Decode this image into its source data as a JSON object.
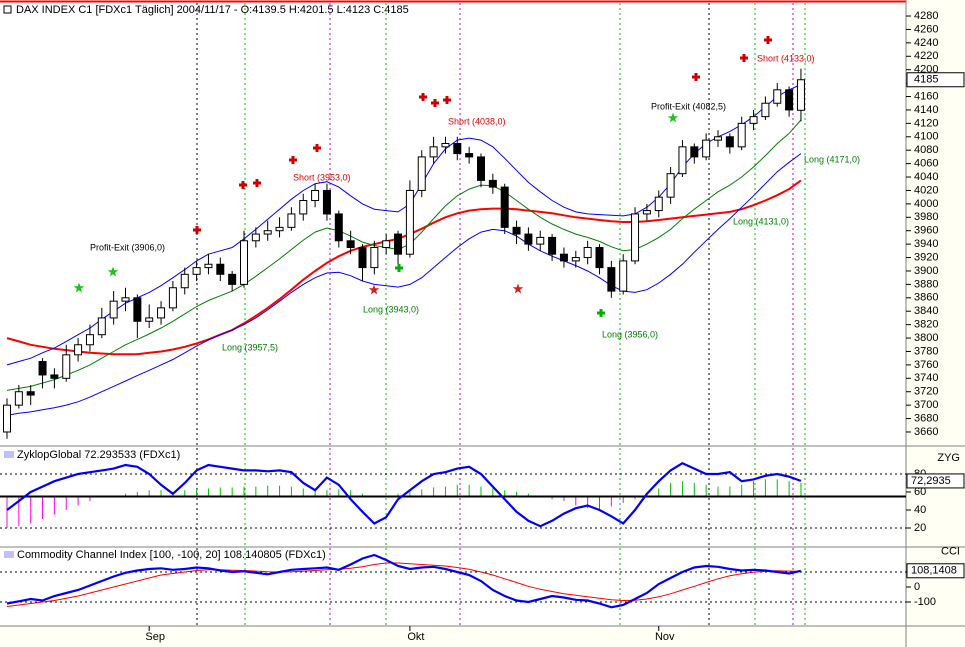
{
  "chart_data": [
    {
      "type": "candlestick",
      "title": "DAX INDEX C1 [FDXc1  Täglich]  2004/11/17  - O:4139.5 H:4201.5 L:4123 C:4185",
      "categories": [
        null,
        null,
        null,
        null,
        null,
        null,
        null,
        null,
        null,
        null,
        null,
        null,
        "Sep",
        null,
        null,
        null,
        null,
        null,
        null,
        null,
        null,
        null,
        null,
        null,
        null,
        null,
        null,
        null,
        null,
        null,
        null,
        null,
        null,
        null,
        "Okt",
        null,
        null,
        null,
        null,
        null,
        null,
        null,
        null,
        null,
        null,
        null,
        null,
        null,
        null,
        null,
        null,
        null,
        null,
        null,
        null,
        "Nov",
        null,
        null,
        null,
        null,
        null,
        null,
        null,
        null,
        null,
        null,
        null,
        null
      ],
      "open": [
        3660,
        3700,
        3720,
        3765,
        3745,
        3740,
        3775,
        3790,
        3805,
        3830,
        3855,
        3860,
        3825,
        3830,
        3845,
        3875,
        3895,
        3905,
        3910,
        3895,
        3880,
        3945,
        3955,
        3960,
        3965,
        3985,
        4005,
        4020,
        3985,
        3945,
        3935,
        3905,
        3935,
        3955,
        3925,
        4020,
        4070,
        4085,
        4090,
        4075,
        4070,
        4035,
        4025,
        3965,
        3955,
        3940,
        3950,
        3925,
        3915,
        3920,
        3935,
        3905,
        3870,
        3915,
        3985,
        3990,
        4010,
        4045,
        4085,
        4070,
        4095,
        4100,
        4085,
        4120,
        4130,
        4150,
        4170,
        4139.5
      ],
      "high": [
        3710,
        3730,
        3730,
        3770,
        3755,
        3790,
        3800,
        3820,
        3845,
        3870,
        3875,
        3865,
        3850,
        3855,
        3885,
        3905,
        3915,
        3925,
        3920,
        3900,
        3960,
        3965,
        3975,
        3980,
        3995,
        4015,
        4030,
        4030,
        3990,
        3960,
        3940,
        3945,
        3955,
        3960,
        4035,
        4080,
        4100,
        4100,
        4100,
        4085,
        4075,
        4045,
        4030,
        3975,
        3965,
        3960,
        3955,
        3935,
        3930,
        3945,
        3940,
        3915,
        3925,
        3995,
        4000,
        4020,
        4055,
        4095,
        4090,
        4105,
        4110,
        4105,
        4130,
        4140,
        4160,
        4180,
        4175,
        4201.5
      ],
      "low": [
        3650,
        3695,
        3700,
        3725,
        3725,
        3735,
        3765,
        3780,
        3800,
        3820,
        3840,
        3800,
        3815,
        3820,
        3840,
        3865,
        3885,
        3895,
        3885,
        3870,
        3875,
        3935,
        3945,
        3950,
        3960,
        3975,
        3995,
        3975,
        3935,
        3925,
        3885,
        3895,
        3925,
        3905,
        3920,
        4010,
        4060,
        4075,
        4065,
        4060,
        4025,
        4015,
        3955,
        3940,
        3930,
        3930,
        3915,
        3905,
        3905,
        3910,
        3895,
        3860,
        3865,
        3910,
        3975,
        3980,
        4000,
        4040,
        4060,
        4065,
        4085,
        4075,
        4080,
        4110,
        4125,
        4145,
        4130,
        4123
      ],
      "close": [
        3700,
        3720,
        3715,
        3745,
        3740,
        3775,
        3790,
        3805,
        3830,
        3855,
        3860,
        3825,
        3830,
        3845,
        3875,
        3895,
        3905,
        3910,
        3895,
        3880,
        3945,
        3955,
        3960,
        3965,
        3985,
        4005,
        4020,
        3985,
        3945,
        3935,
        3905,
        3935,
        3945,
        3925,
        4020,
        4070,
        4085,
        4090,
        4075,
        4070,
        4035,
        4025,
        3965,
        3955,
        3940,
        3950,
        3925,
        3915,
        3920,
        3935,
        3905,
        3870,
        3915,
        3985,
        3990,
        4010,
        4045,
        4085,
        4070,
        4095,
        4100,
        4085,
        4120,
        4130,
        4150,
        4170,
        4140,
        4185
      ],
      "series": [
        {
          "color": "#ff0000",
          "values": [
            3800,
            3795,
            3790,
            3787,
            3784,
            3782,
            3780,
            3778,
            3777,
            3776,
            3776,
            3776,
            3778,
            3780,
            3783,
            3787,
            3792,
            3798,
            3805,
            3812,
            3822,
            3833,
            3845,
            3858,
            3872,
            3887,
            3900,
            3912,
            3922,
            3930,
            3936,
            3940,
            3944,
            3948,
            3955,
            3963,
            3972,
            3980,
            3986,
            3990,
            3992,
            3993,
            3993,
            3992,
            3990,
            3988,
            3986,
            3983,
            3980,
            3978,
            3976,
            3974,
            3973,
            3973,
            3974,
            3976,
            3978,
            3980,
            3982,
            3984,
            3986,
            3988,
            3992,
            3998,
            4005,
            4013,
            4022,
            4035
          ]
        },
        {
          "color": "#008000",
          "values": [
            3722,
            3725,
            3728,
            3733,
            3738,
            3745,
            3752,
            3760,
            3770,
            3780,
            3790,
            3798,
            3806,
            3815,
            3825,
            3836,
            3847,
            3856,
            3863,
            3870,
            3880,
            3892,
            3905,
            3918,
            3932,
            3946,
            3958,
            3964,
            3960,
            3952,
            3943,
            3938,
            3935,
            3932,
            3940,
            3958,
            3978,
            3997,
            4012,
            4022,
            4028,
            4027,
            4018,
            4005,
            3992,
            3980,
            3970,
            3962,
            3955,
            3950,
            3944,
            3936,
            3930,
            3932,
            3940,
            3950,
            3962,
            3978,
            3992,
            4005,
            4018,
            4028,
            4040,
            4055,
            4072,
            4090,
            4105,
            4125
          ]
        },
        {
          "color": "#0000ff",
          "values": [
            3760,
            3765,
            3770,
            3778,
            3785,
            3795,
            3805,
            3815,
            3828,
            3840,
            3852,
            3860,
            3868,
            3878,
            3890,
            3902,
            3915,
            3925,
            3930,
            3935,
            3948,
            3962,
            3977,
            3992,
            4007,
            4020,
            4030,
            4033,
            4025,
            4012,
            4000,
            3992,
            3990,
            3988,
            4000,
            4030,
            4060,
            4082,
            4095,
            4098,
            4095,
            4085,
            4068,
            4050,
            4032,
            4018,
            4005,
            3995,
            3988,
            3985,
            3984,
            3983,
            3982,
            3985,
            3995,
            4010,
            4030,
            4055,
            4075,
            4090,
            4100,
            4108,
            4118,
            4130,
            4145,
            4160,
            4170,
            4178
          ]
        },
        {
          "color": "#0000ff",
          "values": [
            3685,
            3688,
            3690,
            3693,
            3696,
            3700,
            3705,
            3712,
            3720,
            3728,
            3736,
            3744,
            3752,
            3760,
            3768,
            3778,
            3788,
            3797,
            3805,
            3812,
            3820,
            3830,
            3842,
            3855,
            3868,
            3880,
            3890,
            3897,
            3898,
            3893,
            3885,
            3880,
            3878,
            3876,
            3880,
            3890,
            3905,
            3920,
            3935,
            3948,
            3958,
            3962,
            3960,
            3952,
            3940,
            3930,
            3922,
            3915,
            3908,
            3900,
            3890,
            3878,
            3870,
            3868,
            3872,
            3882,
            3895,
            3910,
            3928,
            3945,
            3962,
            3978,
            3995,
            4012,
            4030,
            4048,
            4062,
            4075
          ]
        }
      ],
      "annotations": [
        {
          "text": "Profit-Exit (3906,0)",
          "color": "#000000"
        },
        {
          "text": "Short (3953,0)",
          "color": "#e00000"
        },
        {
          "text": "Long (3957,5)",
          "color": "#008000"
        },
        {
          "text": "Long (3943,0)",
          "color": "#008000"
        },
        {
          "text": "Short (4038,0)",
          "color": "#e00000"
        },
        {
          "text": "Long (3956,0)",
          "color": "#008000"
        },
        {
          "text": "Profit-Exit (4082,5)",
          "color": "#000000"
        },
        {
          "text": "Short (4133,0)",
          "color": "#e00000"
        },
        {
          "text": "Long (4171,0)",
          "color": "#008000"
        },
        {
          "text": "Long (4131,0)",
          "color": "#008000"
        }
      ],
      "up_color": "#ffffff",
      "down_color": "#000000",
      "ylim": [
        3640,
        4300
      ],
      "yticks": [
        3660,
        3680,
        3700,
        3720,
        3740,
        3760,
        3780,
        3800,
        3820,
        3840,
        3860,
        3880,
        3900,
        3920,
        3940,
        3960,
        3980,
        4000,
        4020,
        4040,
        4060,
        4080,
        4100,
        4120,
        4140,
        4160,
        4180,
        4200,
        4220,
        4240,
        4260,
        4280
      ]
    },
    {
      "type": "line",
      "title": "ZyklopGlobal 72.293533 (FDXc1)",
      "axis_label": "ZYG",
      "value_label": "72,2935",
      "series": [
        {
          "color": "#0000ff",
          "values": [
            40,
            50,
            60,
            66,
            72,
            76,
            80,
            82,
            84,
            86,
            90,
            88,
            80,
            68,
            58,
            70,
            84,
            90,
            88,
            86,
            84,
            84,
            83,
            84,
            82,
            70,
            62,
            76,
            68,
            52,
            38,
            25,
            32,
            52,
            62,
            72,
            80,
            82,
            86,
            88,
            80,
            66,
            52,
            38,
            28,
            22,
            28,
            36,
            42,
            45,
            40,
            33,
            25,
            40,
            58,
            72,
            84,
            92,
            86,
            80,
            80,
            82,
            72,
            74,
            78,
            80,
            77,
            72.29
          ]
        }
      ],
      "histogram": {
        "baseline": 55,
        "up_color": "#00c000",
        "down_color": "#ff00ff",
        "values": [
          20,
          22,
          25,
          30,
          35,
          40,
          45,
          50,
          55,
          55,
          58,
          60,
          62,
          62,
          60,
          62,
          63,
          64,
          65,
          65,
          66,
          66,
          67,
          67,
          66,
          64,
          63,
          62,
          63,
          62,
          58,
          56,
          55,
          58,
          60,
          63,
          65,
          66,
          68,
          68,
          66,
          64,
          62,
          60,
          58,
          56,
          52,
          50,
          45,
          42,
          40,
          44,
          48,
          52,
          58,
          64,
          70,
          72,
          70,
          68,
          66,
          66,
          68,
          72,
          74,
          74,
          72,
          70
        ]
      },
      "ylim": [
        0,
        100
      ],
      "yticks": [
        20,
        40,
        60,
        80
      ]
    },
    {
      "type": "line",
      "title": "Commodity Channel Index [100, -100, 20] 108.140805 (FDXc1)",
      "axis_label": "CCI",
      "value_label": "108,1408",
      "series": [
        {
          "color": "#0000ff",
          "values": [
            -110,
            -95,
            -80,
            -90,
            -60,
            -40,
            -20,
            10,
            40,
            70,
            95,
            110,
            120,
            125,
            115,
            120,
            130,
            125,
            110,
            100,
            105,
            95,
            85,
            100,
            115,
            120,
            125,
            130,
            115,
            150,
            190,
            213,
            180,
            140,
            120,
            130,
            135,
            120,
            100,
            80,
            40,
            -20,
            -60,
            -90,
            -100,
            -80,
            -60,
            -70,
            -85,
            -90,
            -110,
            -135,
            -120,
            -80,
            -40,
            20,
            60,
            100,
            130,
            140,
            135,
            120,
            110,
            115,
            110,
            100,
            90,
            108.14
          ]
        },
        {
          "color": "#ff0000",
          "values": [
            -130,
            -120,
            -110,
            -100,
            -90,
            -75,
            -60,
            -40,
            -20,
            0,
            20,
            40,
            60,
            80,
            90,
            100,
            110,
            115,
            115,
            112,
            110,
            106,
            102,
            100,
            102,
            106,
            110,
            115,
            118,
            125,
            135,
            150,
            160,
            160,
            155,
            150,
            145,
            140,
            130,
            118,
            100,
            80,
            55,
            30,
            5,
            -15,
            -30,
            -45,
            -55,
            -65,
            -75,
            -85,
            -90,
            -88,
            -80,
            -65,
            -45,
            -20,
            5,
            30,
            55,
            75,
            88,
            98,
            105,
            108,
            106,
            104
          ]
        }
      ],
      "ylim": [
        -250,
        250
      ],
      "yticks": [
        -100,
        0,
        100
      ]
    }
  ]
}
